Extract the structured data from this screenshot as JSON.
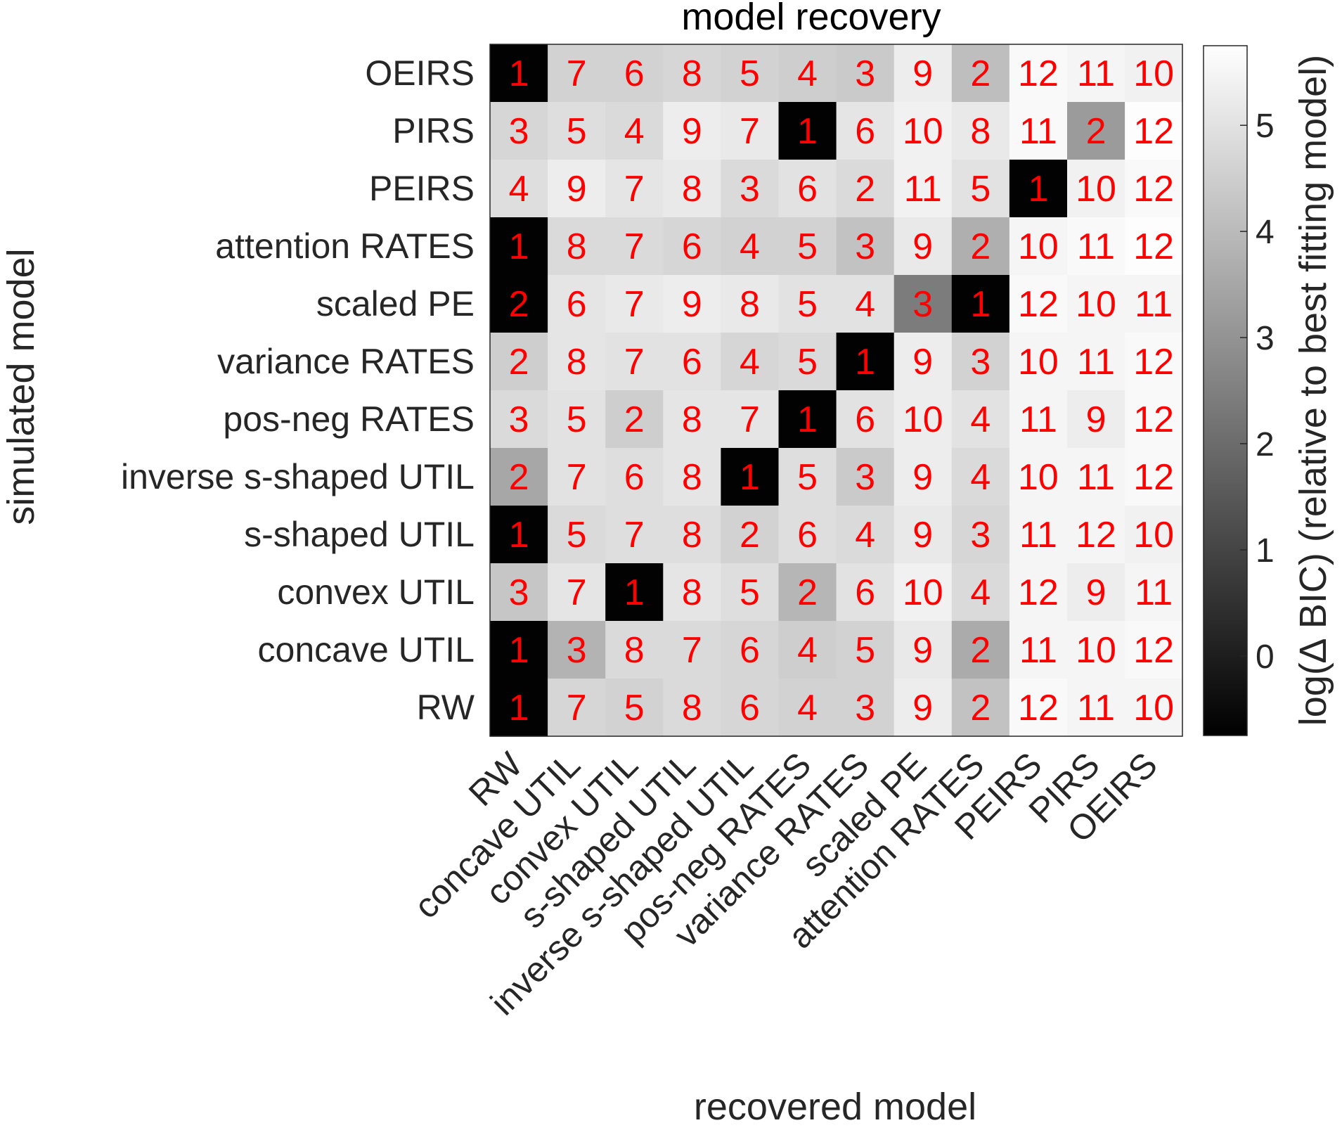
{
  "chart_data": {
    "type": "heatmap",
    "title": "model recovery",
    "xlabel": "recovered model",
    "ylabel": "simulated model",
    "columns": [
      "RW",
      "concave UTIL",
      "convex UTIL",
      "s-shaped UTIL",
      "inverse s-shaped UTIL",
      "pos-neg RATES",
      "variance RATES",
      "scaled PE",
      "attention RATES",
      "PEIRS",
      "PIRS",
      "OEIRS"
    ],
    "rows": [
      "OEIRS",
      "PIRS",
      "PEIRS",
      "attention RATES",
      "scaled PE",
      "variance RATES",
      "pos-neg RATES",
      "inverse s-shaped UTIL",
      "s-shaped UTIL",
      "convex UTIL",
      "concave UTIL",
      "RW"
    ],
    "ranks": [
      [
        1,
        7,
        6,
        8,
        5,
        4,
        3,
        9,
        2,
        12,
        11,
        10
      ],
      [
        3,
        5,
        4,
        9,
        7,
        1,
        6,
        10,
        8,
        11,
        2,
        12
      ],
      [
        4,
        9,
        7,
        8,
        3,
        6,
        2,
        11,
        5,
        1,
        10,
        12
      ],
      [
        1,
        8,
        7,
        6,
        4,
        5,
        3,
        9,
        2,
        10,
        11,
        12
      ],
      [
        2,
        6,
        7,
        9,
        8,
        5,
        4,
        3,
        1,
        12,
        10,
        11
      ],
      [
        2,
        8,
        7,
        6,
        4,
        5,
        1,
        9,
        3,
        10,
        11,
        12
      ],
      [
        3,
        5,
        2,
        8,
        7,
        1,
        6,
        10,
        4,
        11,
        9,
        12
      ],
      [
        2,
        7,
        6,
        8,
        1,
        5,
        3,
        9,
        4,
        10,
        11,
        12
      ],
      [
        1,
        5,
        7,
        8,
        2,
        6,
        4,
        9,
        3,
        11,
        12,
        10
      ],
      [
        3,
        7,
        1,
        8,
        5,
        2,
        6,
        10,
        4,
        12,
        9,
        11
      ],
      [
        1,
        3,
        8,
        7,
        6,
        4,
        5,
        9,
        2,
        11,
        10,
        12
      ],
      [
        1,
        7,
        5,
        8,
        6,
        4,
        3,
        9,
        2,
        12,
        11,
        10
      ]
    ],
    "values": [
      [
        -0.7,
        4.6,
        4.6,
        4.7,
        4.6,
        4.5,
        4.4,
        5.3,
        4.1,
        5.6,
        5.5,
        5.4
      ],
      [
        4.7,
        4.9,
        4.8,
        5.3,
        5.2,
        -0.7,
        5.1,
        5.4,
        5.2,
        5.6,
        3.2,
        5.7
      ],
      [
        4.9,
        5.3,
        5.1,
        5.2,
        4.8,
        5.0,
        4.8,
        5.4,
        5.0,
        -0.7,
        5.4,
        5.6
      ],
      [
        -0.7,
        4.8,
        4.8,
        4.7,
        4.6,
        4.6,
        4.2,
        5.2,
        3.7,
        5.5,
        5.6,
        5.7
      ],
      [
        -0.7,
        5.1,
        5.2,
        5.3,
        5.2,
        5.0,
        5.0,
        2.4,
        -0.7,
        5.6,
        5.5,
        5.5
      ],
      [
        4.5,
        5.1,
        5.0,
        5.0,
        4.7,
        4.8,
        -0.7,
        5.3,
        4.6,
        5.5,
        5.5,
        5.6
      ],
      [
        4.8,
        5.0,
        4.5,
        5.1,
        5.1,
        -0.7,
        5.0,
        5.3,
        5.0,
        5.5,
        5.3,
        5.6
      ],
      [
        3.5,
        5.0,
        4.9,
        5.1,
        -0.7,
        4.9,
        4.4,
        5.3,
        4.8,
        5.5,
        5.5,
        5.6
      ],
      [
        -0.7,
        4.8,
        4.9,
        4.9,
        4.6,
        4.9,
        4.8,
        5.2,
        4.7,
        5.5,
        5.5,
        5.4
      ],
      [
        4.3,
        5.1,
        -0.7,
        5.1,
        4.9,
        3.9,
        5.0,
        5.4,
        4.8,
        5.5,
        5.3,
        5.5
      ],
      [
        -0.7,
        3.8,
        4.8,
        4.8,
        4.7,
        4.5,
        4.6,
        5.2,
        3.6,
        5.5,
        5.5,
        5.6
      ],
      [
        -0.7,
        4.7,
        4.6,
        4.8,
        4.7,
        4.6,
        4.6,
        5.3,
        4.2,
        5.6,
        5.5,
        5.5
      ]
    ],
    "clim": [
      -0.75,
      5.75
    ],
    "colormap": "gray",
    "colorbar": {
      "label": "log(∆ BIC) (relative to best fitting model)",
      "ticks": [
        0,
        1,
        2,
        3,
        4,
        5
      ],
      "tick_labels": [
        "0",
        "1",
        "2",
        "3",
        "4",
        "5"
      ]
    },
    "cell_label_color": "#ff0000",
    "grid": false,
    "axis_color": "#262626"
  }
}
